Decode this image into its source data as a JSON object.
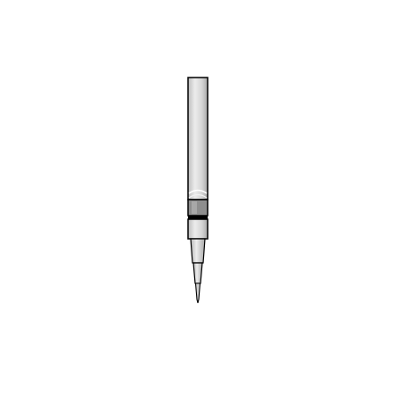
{
  "illustration": {
    "icon": "pen-refill-icon",
    "colors": {
      "background": "#ffffff",
      "outline": "#000000",
      "barrel_light": "#e6e6e6",
      "barrel_mid": "#cfcfcf",
      "barrel_shadow": "#bdbdbd",
      "band": "#8a8a8a",
      "tip_light": "#d9d9d9"
    }
  }
}
